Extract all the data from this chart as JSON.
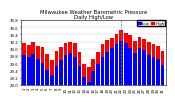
{
  "title": "Milwaukee Weather Barometric Pressure",
  "subtitle": "Daily High/Low",
  "high_values": [
    30.15,
    30.1,
    30.18,
    30.08,
    30.05,
    29.85,
    29.7,
    29.95,
    30.05,
    30.15,
    30.2,
    30.15,
    29.9,
    29.58,
    29.5,
    29.72,
    29.92,
    30.12,
    30.25,
    30.3,
    30.42,
    30.52,
    30.45,
    30.38,
    30.22,
    30.32,
    30.28,
    30.18,
    30.12,
    30.08,
    29.95
  ],
  "low_values": [
    29.82,
    29.78,
    29.85,
    29.72,
    29.6,
    29.42,
    29.28,
    29.52,
    29.68,
    29.82,
    29.88,
    29.78,
    29.52,
    29.22,
    29.08,
    29.38,
    29.58,
    29.78,
    29.92,
    30.02,
    30.12,
    30.22,
    30.15,
    30.02,
    29.88,
    30.02,
    29.98,
    29.82,
    29.78,
    29.72,
    29.55
  ],
  "x_labels": [
    "1",
    "2",
    "3",
    "4",
    "5",
    "6",
    "7",
    "8",
    "9",
    "10",
    "11",
    "12",
    "13",
    "14",
    "15",
    "16",
    "17",
    "18",
    "19",
    "20",
    "21",
    "22",
    "23",
    "24",
    "25",
    "26",
    "27",
    "28",
    "29",
    "30",
    "31"
  ],
  "high_color": "#ff0000",
  "low_color": "#0000ff",
  "ylim_min": 29.0,
  "ylim_max": 30.8,
  "yticks": [
    29.0,
    29.2,
    29.4,
    29.6,
    29.8,
    30.0,
    30.2,
    30.4,
    30.6,
    30.8
  ],
  "ytick_labels": [
    "29.0",
    "29.2",
    "29.4",
    "29.6",
    "29.8",
    "30.0",
    "30.2",
    "30.4",
    "30.6",
    "30.8"
  ],
  "bar_width": 0.38,
  "background_color": "#ffffff",
  "grid_color": "#cccccc",
  "title_fontsize": 3.8,
  "axis_fontsize": 2.8,
  "legend_fontsize": 3.0,
  "dashed_line_x": 21
}
